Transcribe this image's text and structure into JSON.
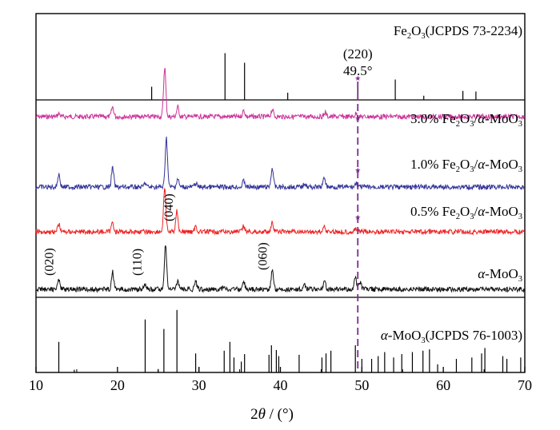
{
  "chart_data": {
    "type": "line",
    "xlabel": "2θ / (°)",
    "xlim": [
      10,
      70
    ],
    "xticks": [
      10,
      20,
      30,
      40,
      50,
      60,
      70
    ],
    "grid": false,
    "panels": [
      {
        "id": "fe2o3-ref",
        "label_parts": [
          "Fe",
          "2",
          "O",
          "3",
          "(JCPDS 73-2234)"
        ],
        "sticks": [
          {
            "x": 24.2,
            "h": 0.22
          },
          {
            "x": 33.2,
            "h": 0.78
          },
          {
            "x": 35.6,
            "h": 0.62
          },
          {
            "x": 40.9,
            "h": 0.12
          },
          {
            "x": 49.5,
            "h": 0.3
          },
          {
            "x": 54.1,
            "h": 0.34
          },
          {
            "x": 57.6,
            "h": 0.07
          },
          {
            "x": 62.4,
            "h": 0.15
          },
          {
            "x": 64.0,
            "h": 0.14
          }
        ]
      },
      {
        "id": "moo3-ref",
        "label_parts": [
          "α",
          "-MoO",
          "3",
          "(JCPDS 76-1003)"
        ],
        "sticks": [
          {
            "x": 12.8,
            "h": 0.45
          },
          {
            "x": 14.7,
            "h": 0.04
          },
          {
            "x": 23.4,
            "h": 0.78
          },
          {
            "x": 25.0,
            "h": 0.05
          },
          {
            "x": 25.7,
            "h": 0.64
          },
          {
            "x": 27.3,
            "h": 0.92
          },
          {
            "x": 29.6,
            "h": 0.28
          },
          {
            "x": 30.0,
            "h": 0.08
          },
          {
            "x": 33.1,
            "h": 0.32
          },
          {
            "x": 33.8,
            "h": 0.45
          },
          {
            "x": 34.3,
            "h": 0.22
          },
          {
            "x": 35.2,
            "h": 0.16
          },
          {
            "x": 35.6,
            "h": 0.27
          },
          {
            "x": 38.6,
            "h": 0.26
          },
          {
            "x": 38.9,
            "h": 0.4
          },
          {
            "x": 39.5,
            "h": 0.33
          },
          {
            "x": 39.8,
            "h": 0.24
          },
          {
            "x": 42.3,
            "h": 0.26
          },
          {
            "x": 45.1,
            "h": 0.22
          },
          {
            "x": 45.6,
            "h": 0.28
          },
          {
            "x": 46.2,
            "h": 0.32
          },
          {
            "x": 49.2,
            "h": 0.4
          },
          {
            "x": 50.0,
            "h": 0.2
          },
          {
            "x": 51.2,
            "h": 0.2
          },
          {
            "x": 52.0,
            "h": 0.24
          },
          {
            "x": 52.8,
            "h": 0.3
          },
          {
            "x": 53.9,
            "h": 0.22
          },
          {
            "x": 54.9,
            "h": 0.27
          },
          {
            "x": 56.2,
            "h": 0.3
          },
          {
            "x": 57.5,
            "h": 0.32
          },
          {
            "x": 58.3,
            "h": 0.34
          },
          {
            "x": 59.3,
            "h": 0.12
          },
          {
            "x": 61.6,
            "h": 0.2
          },
          {
            "x": 63.5,
            "h": 0.22
          },
          {
            "x": 64.7,
            "h": 0.28
          },
          {
            "x": 65.1,
            "h": 0.36
          },
          {
            "x": 67.3,
            "h": 0.24
          },
          {
            "x": 67.8,
            "h": 0.2
          },
          {
            "x": 69.5,
            "h": 0.22
          }
        ]
      }
    ],
    "series": [
      {
        "name_parts": [
          "3.0% Fe",
          "2",
          "O",
          "3",
          "/",
          "α",
          "-MoO",
          "3"
        ],
        "color": "#cc3399",
        "peaks": [
          {
            "x": 12.8,
            "h": 0.04
          },
          {
            "x": 19.4,
            "h": 0.12
          },
          {
            "x": 25.8,
            "h": 0.62
          },
          {
            "x": 27.4,
            "h": 0.12
          },
          {
            "x": 35.5,
            "h": 0.08
          },
          {
            "x": 39.0,
            "h": 0.09
          },
          {
            "x": 45.5,
            "h": 0.05
          },
          {
            "x": 49.3,
            "h": 0.04
          }
        ]
      },
      {
        "name_parts": [
          "1.0% Fe",
          "2",
          "O",
          "3",
          "/",
          "α",
          "-MoO",
          "3"
        ],
        "color": "#333399",
        "peaks": [
          {
            "x": 12.8,
            "h": 0.16
          },
          {
            "x": 19.4,
            "h": 0.24
          },
          {
            "x": 23.4,
            "h": 0.05
          },
          {
            "x": 26.0,
            "h": 0.62
          },
          {
            "x": 27.4,
            "h": 0.1
          },
          {
            "x": 29.6,
            "h": 0.05
          },
          {
            "x": 35.5,
            "h": 0.08
          },
          {
            "x": 39.0,
            "h": 0.24
          },
          {
            "x": 43.0,
            "h": 0.05
          },
          {
            "x": 45.4,
            "h": 0.12
          },
          {
            "x": 49.3,
            "h": 0.05
          }
        ]
      },
      {
        "name_parts": [
          "0.5% Fe",
          "2",
          "O",
          "3",
          "/",
          "α",
          "-MoO",
          "3"
        ],
        "color": "#ee2222",
        "peaks": [
          {
            "x": 12.8,
            "h": 0.1
          },
          {
            "x": 19.4,
            "h": 0.12
          },
          {
            "x": 25.8,
            "h": 0.56
          },
          {
            "x": 27.3,
            "h": 0.26
          },
          {
            "x": 29.6,
            "h": 0.07
          },
          {
            "x": 35.5,
            "h": 0.07
          },
          {
            "x": 39.0,
            "h": 0.11
          },
          {
            "x": 45.4,
            "h": 0.07
          },
          {
            "x": 49.3,
            "h": 0.04
          }
        ]
      },
      {
        "name_parts": [
          "α",
          "-MoO",
          "3"
        ],
        "color": "#111111",
        "peaks": [
          {
            "x": 12.8,
            "h": 0.12
          },
          {
            "x": 19.4,
            "h": 0.22
          },
          {
            "x": 23.4,
            "h": 0.07
          },
          {
            "x": 25.9,
            "h": 0.56
          },
          {
            "x": 27.4,
            "h": 0.1
          },
          {
            "x": 29.6,
            "h": 0.09
          },
          {
            "x": 33.1,
            "h": 0.05
          },
          {
            "x": 35.5,
            "h": 0.09
          },
          {
            "x": 39.0,
            "h": 0.24
          },
          {
            "x": 43.0,
            "h": 0.06
          },
          {
            "x": 45.4,
            "h": 0.12
          },
          {
            "x": 49.2,
            "h": 0.14
          },
          {
            "x": 49.8,
            "h": 0.08
          }
        ]
      }
    ],
    "annotations": [
      {
        "text": "(220)",
        "x": 49.5,
        "panel": "fe2o3-ref"
      },
      {
        "text": "49.5°",
        "x": 49.5,
        "panel": "fe2o3-ref"
      },
      {
        "text": "(020)",
        "x": 12.8,
        "series": 3,
        "rotated": true
      },
      {
        "text": "(110)",
        "x": 23.4,
        "series": 3,
        "rotated": true
      },
      {
        "text": "(040)",
        "x": 27.4,
        "series": 2,
        "rotated": true
      },
      {
        "text": "(060)",
        "x": 39.0,
        "series": 3,
        "rotated": true
      }
    ],
    "reference_line": {
      "x": 49.5,
      "style": "dashed",
      "color": "#7b2d8e",
      "marker": "star"
    }
  }
}
